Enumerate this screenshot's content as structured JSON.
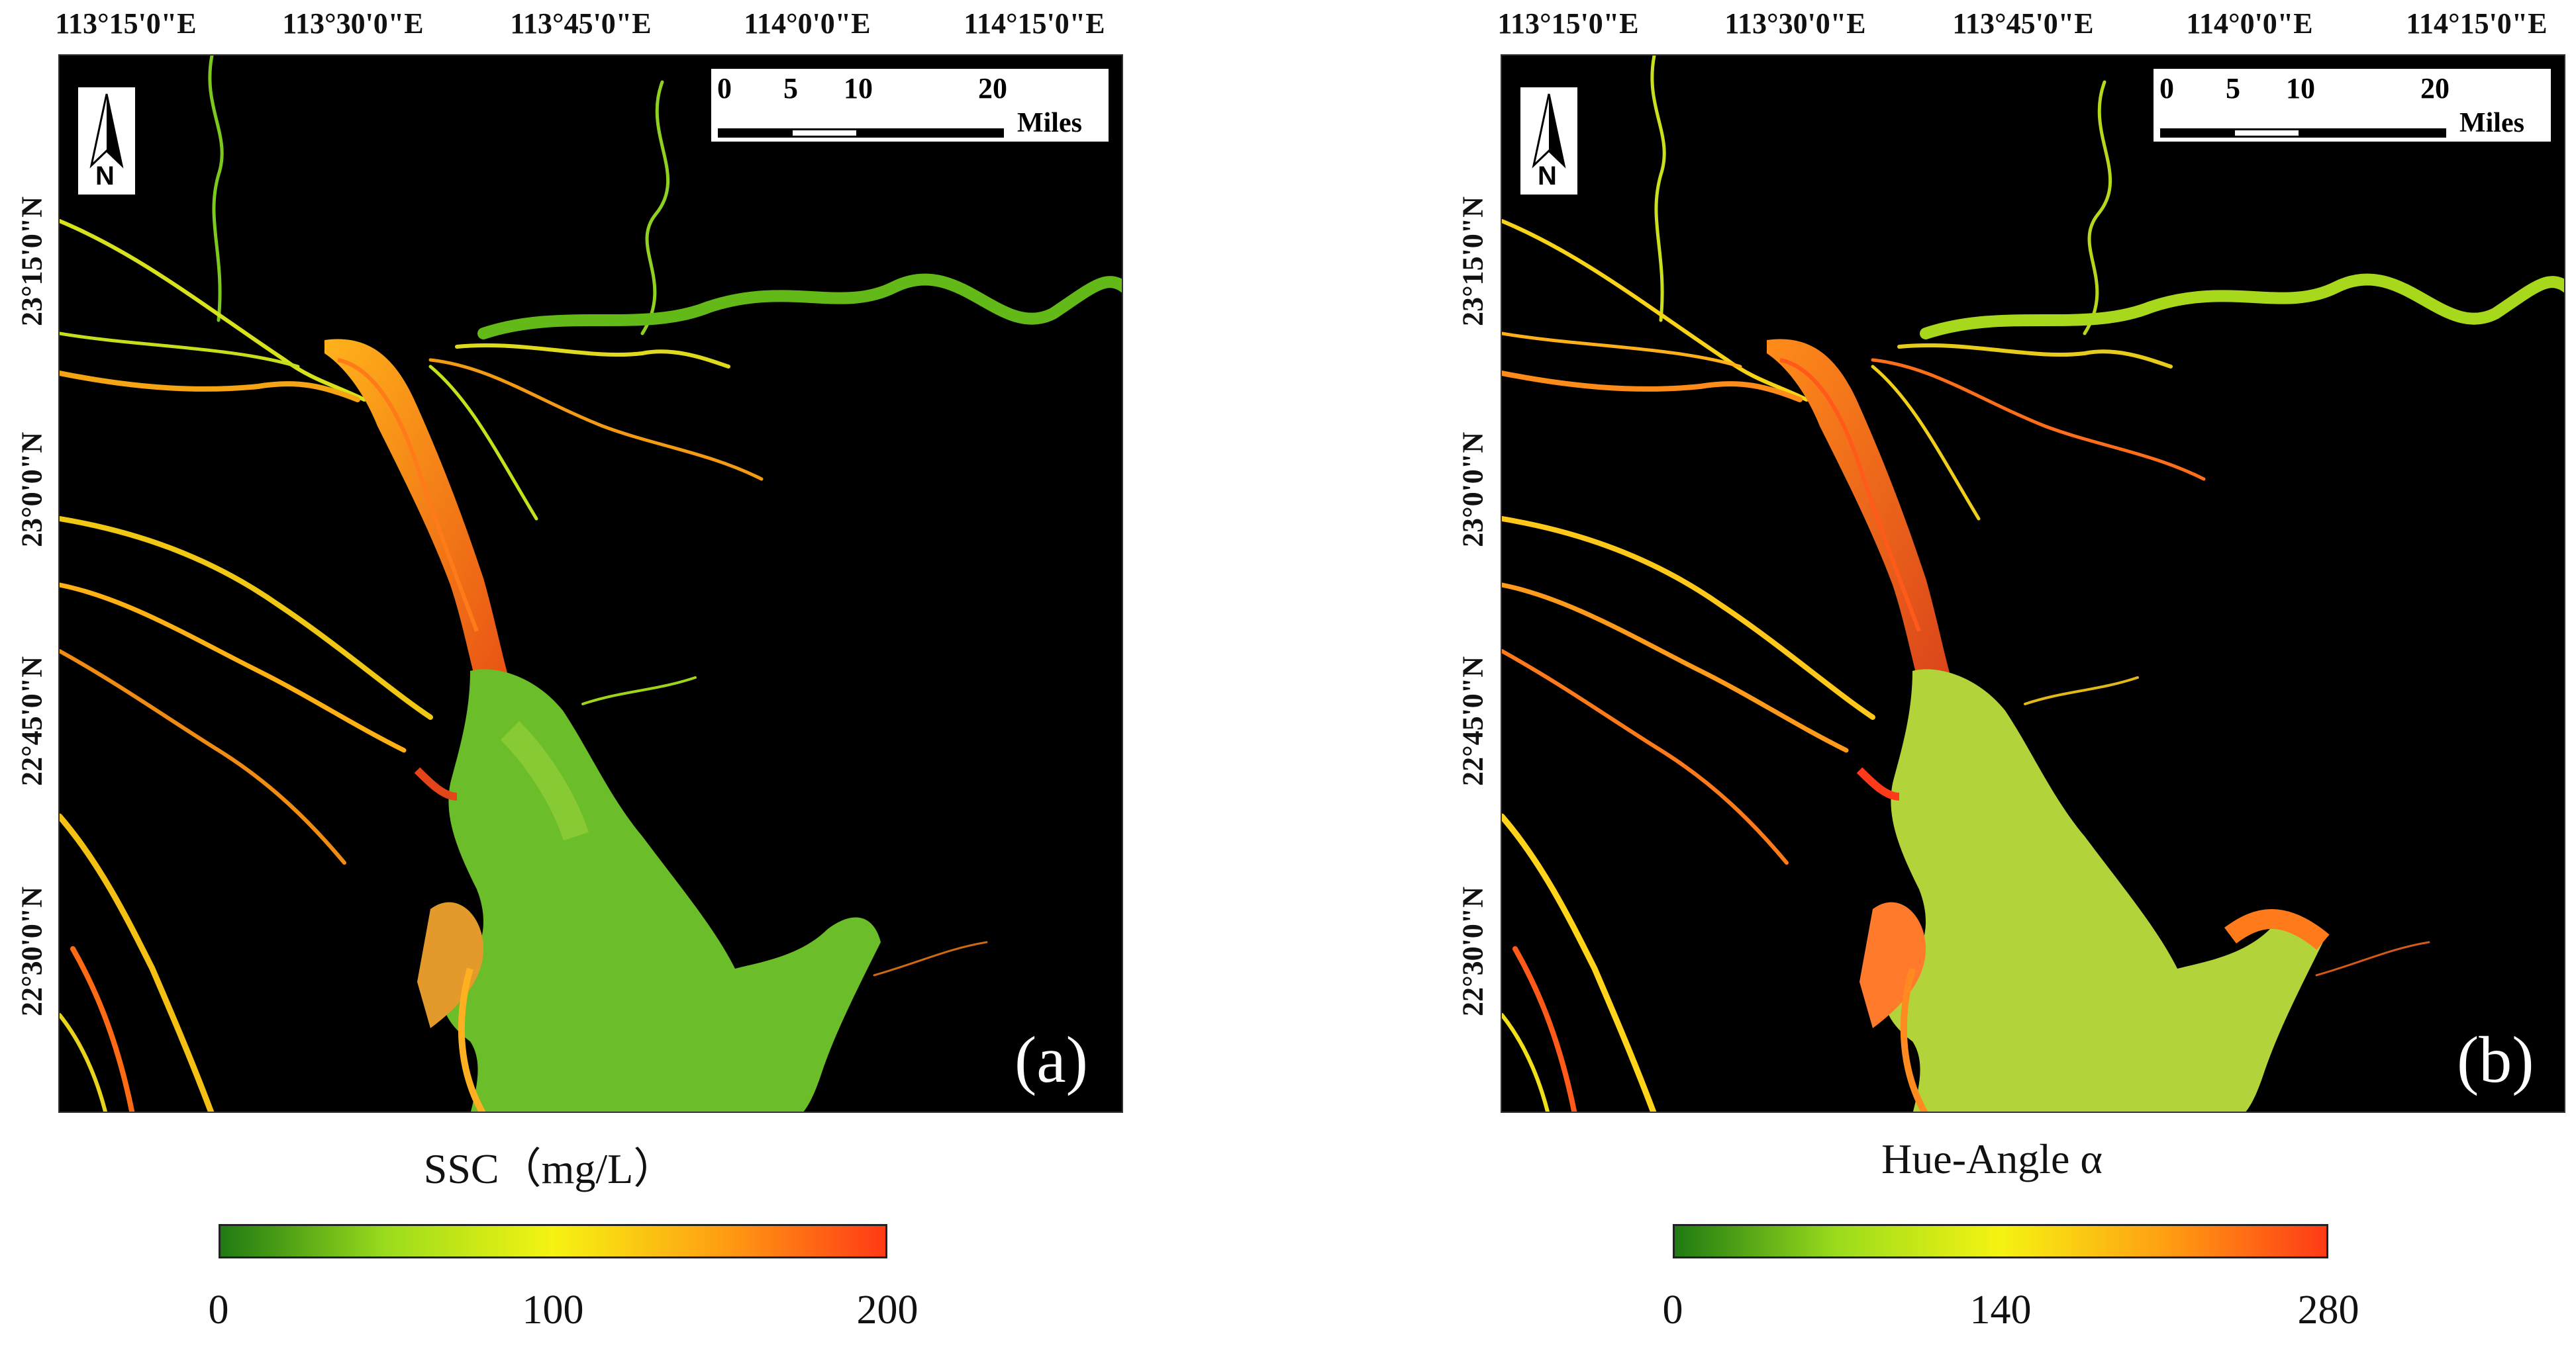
{
  "panels": [
    {
      "id": "a",
      "panel_label": "(a)",
      "lon_labels": [
        "113°15'0\"E",
        "113°30'0\"E",
        "113°45'0\"E",
        "114°0'0\"E",
        "114°15'0\"E"
      ],
      "lat_labels": [
        "23°15'0\"N",
        "23°0'0\"N",
        "22°45'0\"N",
        "22°30'0\"N"
      ],
      "north_label": "N",
      "scale": {
        "ticks": [
          "0",
          "5",
          "10",
          "20"
        ],
        "unit": "Miles"
      },
      "colorbar": {
        "title": "SSC（mg/L）",
        "ticks": [
          "0",
          "100",
          "200"
        ],
        "range": [
          0,
          200
        ],
        "colors": [
          "#1f7a12",
          "#9bdc1c",
          "#f5f312",
          "#ffa012",
          "#ff3a16"
        ]
      }
    },
    {
      "id": "b",
      "panel_label": "(b)",
      "lon_labels": [
        "113°15'0\"E",
        "113°30'0\"E",
        "113°45'0\"E",
        "114°0'0\"E",
        "114°15'0\"E"
      ],
      "lat_labels": [
        "23°15'0\"N",
        "23°0'0\"N",
        "22°45'0\"N",
        "22°30'0\"N"
      ],
      "north_label": "N",
      "scale": {
        "ticks": [
          "0",
          "5",
          "10",
          "20"
        ],
        "unit": "Miles"
      },
      "colorbar": {
        "title": "Hue-Angle α",
        "ticks": [
          "0",
          "140",
          "280"
        ],
        "range": [
          0,
          280
        ],
        "colors": [
          "#1f7a12",
          "#9bdc1c",
          "#f5f312",
          "#ffa012",
          "#ff3a16"
        ]
      }
    }
  ]
}
